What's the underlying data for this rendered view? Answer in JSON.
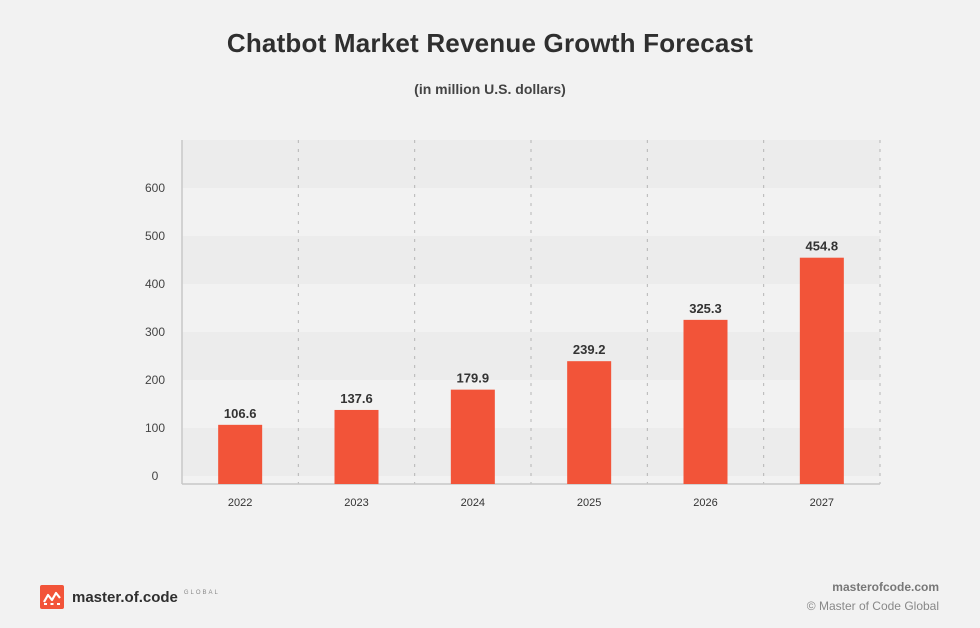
{
  "header": {
    "title": "Chatbot Market Revenue Growth Forecast",
    "subtitle": "(in million U.S. dollars)"
  },
  "chart_data": {
    "type": "bar",
    "categories": [
      "2022",
      "2023",
      "2024",
      "2025",
      "2026",
      "2027"
    ],
    "values": [
      106.6,
      137.6,
      179.9,
      239.2,
      325.3,
      454.8
    ],
    "value_labels": [
      "106.6",
      "137.6",
      "179.9",
      "239.2",
      "325.3",
      "454.8"
    ],
    "title": "Chatbot Market Revenue Growth Forecast",
    "subtitle": "(in million U.S. dollars)",
    "xlabel": "",
    "ylabel": "",
    "ylim": [
      0,
      700
    ],
    "yticks": [
      0,
      100,
      200,
      300,
      400,
      500,
      600
    ],
    "grid": "horizontal bands, vertical dashed lines",
    "bar_color": "#f25439"
  },
  "footer": {
    "brand_name": "master.of.code",
    "brand_tag": "GLOBAL",
    "website": "masterofcode.com",
    "copyright": "© Master of Code Global"
  }
}
